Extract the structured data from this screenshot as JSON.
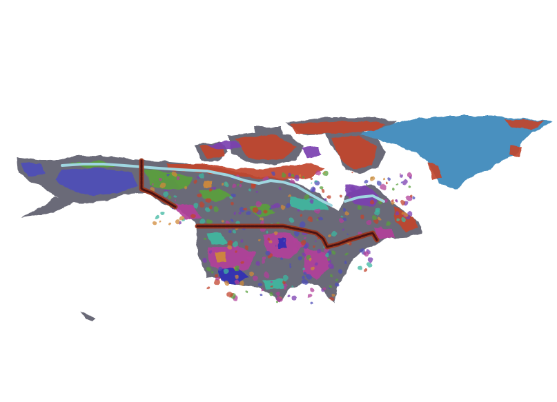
{
  "map": {
    "colors": {
      "background": "#ffffff",
      "land_base": "#6b6b78",
      "greenland": "#4a90bf",
      "arctic_red": "#c1442e",
      "purple": "#7b3fb0",
      "blue_violet": "#4f4fb8",
      "magenta": "#b2409a",
      "green": "#5aa03c",
      "teal": "#3fb7a0",
      "orange": "#d08a3a",
      "deep_blue": "#2f2fb5",
      "light_blue_line": "#9fd6e0",
      "border_dark": "#4a1212",
      "border_glow": "#9b3a22"
    },
    "legend": []
  }
}
